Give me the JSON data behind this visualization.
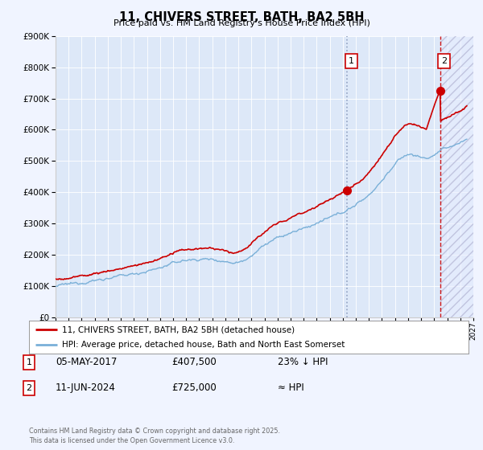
{
  "title": "11, CHIVERS STREET, BATH, BA2 5BH",
  "subtitle": "Price paid vs. HM Land Registry's House Price Index (HPI)",
  "background_color": "#f0f4ff",
  "plot_bg_color": "#dde8f8",
  "hpi_color": "#7ab0d8",
  "price_color": "#cc0000",
  "vline1_color": "#9999bb",
  "vline2_color": "#cc0000",
  "ylim": [
    0,
    900000
  ],
  "yticks": [
    0,
    100000,
    200000,
    300000,
    400000,
    500000,
    600000,
    700000,
    800000,
    900000
  ],
  "xlim_start": 1995.0,
  "xlim_end": 2027.0,
  "transaction1_year": 2017.35,
  "transaction1_price": 407500,
  "transaction2_year": 2024.45,
  "transaction2_price": 725000,
  "legend_line1": "11, CHIVERS STREET, BATH, BA2 5BH (detached house)",
  "legend_line2": "HPI: Average price, detached house, Bath and North East Somerset",
  "info1_date": "05-MAY-2017",
  "info1_price": "£407,500",
  "info1_hpi": "23% ↓ HPI",
  "info2_date": "11-JUN-2024",
  "info2_price": "£725,000",
  "info2_hpi": "≈ HPI",
  "footer": "Contains HM Land Registry data © Crown copyright and database right 2025.\nThis data is licensed under the Open Government Licence v3.0."
}
